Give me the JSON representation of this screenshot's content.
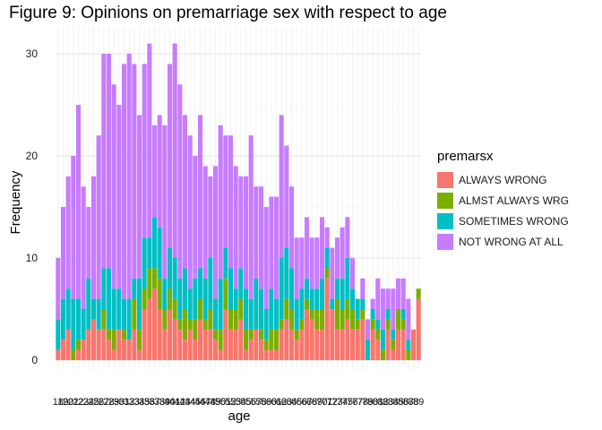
{
  "chart_data": {
    "type": "bar",
    "stacked": true,
    "title": "Figure 9: Opinions on premarriage sex with respect to age",
    "xlabel": "age",
    "ylabel": "Frequency",
    "ylim": [
      0,
      32
    ],
    "yticks": [
      0,
      10,
      20,
      30
    ],
    "grid": true,
    "legend_title": "premarsx",
    "legend_position": "right",
    "categories": [
      "18",
      "19",
      "20",
      "21",
      "22",
      "23",
      "24",
      "25",
      "26",
      "27",
      "28",
      "29",
      "30",
      "31",
      "32",
      "33",
      "34",
      "35",
      "36",
      "37",
      "38",
      "39",
      "40",
      "41",
      "42",
      "43",
      "44",
      "45",
      "46",
      "47",
      "48",
      "49",
      "50",
      "51",
      "52",
      "53",
      "54",
      "55",
      "56",
      "57",
      "58",
      "59",
      "60",
      "61",
      "62",
      "63",
      "64",
      "65",
      "66",
      "67",
      "68",
      "69",
      "70",
      "71",
      "72",
      "73",
      "74",
      "75",
      "76",
      "77",
      "78",
      "79",
      "80",
      "81",
      "82",
      "83",
      "84",
      "85",
      "86",
      "87",
      "88",
      "89"
    ],
    "series": [
      {
        "name": "ALWAYS WRONG",
        "color": "#F8766D",
        "values": [
          1,
          2,
          3,
          0,
          1,
          2,
          3,
          4,
          3,
          3,
          2,
          1,
          3,
          2,
          2,
          3,
          1,
          5,
          6,
          7,
          5,
          3,
          5,
          4,
          3,
          2,
          3,
          2,
          4,
          3,
          3,
          2,
          1,
          5,
          3,
          3,
          4,
          1,
          2,
          3,
          2,
          1,
          1,
          1,
          3,
          4,
          3,
          2,
          3,
          5,
          4,
          3,
          3,
          8,
          5,
          3,
          3,
          4,
          3,
          3,
          4,
          0,
          3,
          2,
          0,
          3,
          1,
          3,
          3,
          0,
          3,
          6
        ]
      },
      {
        "name": "ALMST ALWAYS WRG",
        "color": "#7CAE00",
        "values": [
          0,
          0,
          0,
          1,
          1,
          0,
          0,
          0,
          0,
          2,
          1,
          2,
          0,
          1,
          0,
          3,
          2,
          2,
          3,
          2,
          3,
          2,
          2,
          2,
          1,
          3,
          1,
          2,
          2,
          1,
          2,
          1,
          2,
          3,
          2,
          2,
          2,
          2,
          1,
          0,
          1,
          1,
          2,
          2,
          1,
          2,
          2,
          1,
          1,
          1,
          1,
          2,
          2,
          1,
          0,
          3,
          2,
          2,
          2,
          1,
          1,
          0,
          1,
          1,
          1,
          1,
          1,
          2,
          1,
          1,
          0,
          1
        ]
      },
      {
        "name": "SOMETIMES WRONG",
        "color": "#00BFC4",
        "values": [
          3,
          4,
          4,
          5,
          4,
          3,
          5,
          2,
          3,
          4,
          6,
          4,
          4,
          3,
          4,
          2,
          5,
          5,
          3,
          5,
          5,
          3,
          4,
          4,
          4,
          4,
          3,
          4,
          3,
          4,
          5,
          3,
          5,
          3,
          4,
          2,
          3,
          4,
          3,
          5,
          4,
          3,
          4,
          3,
          6,
          5,
          4,
          3,
          3,
          2,
          2,
          2,
          3,
          2,
          1,
          2,
          3,
          4,
          2,
          2,
          1,
          2,
          1,
          1,
          2,
          1,
          1,
          0,
          1,
          1,
          0,
          0
        ]
      },
      {
        "name": "NOT WRONG AT ALL",
        "color": "#C77CFF",
        "values": [
          6,
          9,
          11,
          14,
          19,
          12,
          7,
          12,
          16,
          21,
          21,
          20,
          18,
          23,
          24,
          21,
          16,
          17,
          19,
          9,
          11,
          15,
          18,
          21,
          19,
          15,
          15,
          12,
          15,
          11,
          8,
          13,
          15,
          11,
          13,
          12,
          9,
          11,
          16,
          9,
          10,
          10,
          9,
          10,
          14,
          10,
          8,
          6,
          5,
          6,
          5,
          5,
          6,
          2,
          5,
          4,
          5,
          4,
          3,
          0,
          2,
          2,
          1,
          4,
          4,
          2,
          4,
          3,
          3,
          4,
          0,
          0
        ]
      }
    ]
  }
}
